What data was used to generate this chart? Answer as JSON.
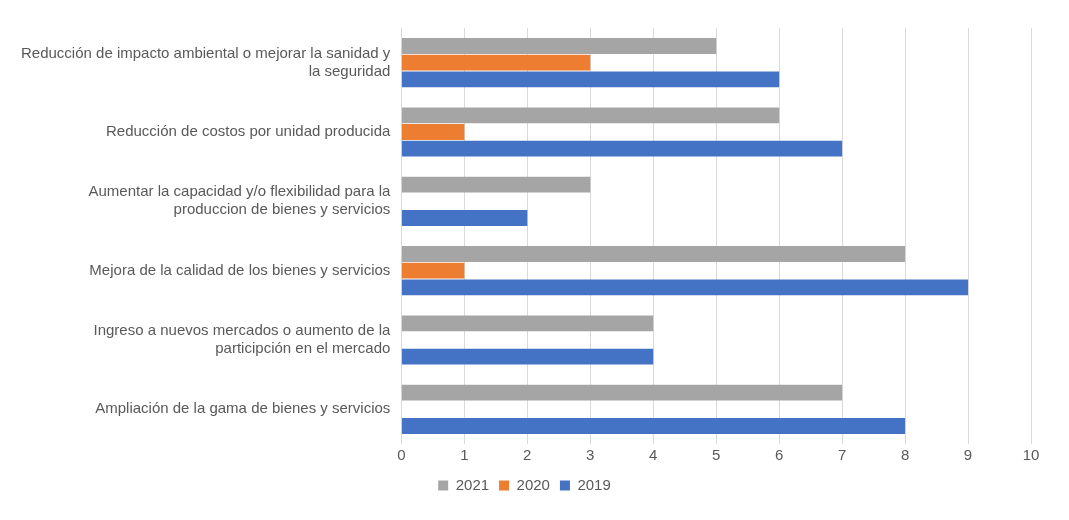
{
  "chart_data": {
    "type": "bar",
    "orientation": "horizontal",
    "categories": [
      "Reducción de impacto ambiental o mejorar la sanidad y la seguridad",
      "Reducción de costos por unidad producida",
      "Aumentar la capacidad y/o flexibilidad para la produccion de bienes y servicios",
      "Mejora de la calidad de los bienes y servicios",
      "Ingreso a nuevos mercados o aumento de la participción en el mercado",
      "Ampliación de la gama de bienes y servicios"
    ],
    "series": [
      {
        "name": "2021",
        "color": "#a5a5a5",
        "values": [
          5,
          6,
          3,
          8,
          4,
          7
        ]
      },
      {
        "name": "2020",
        "color": "#ed7d31",
        "values": [
          3,
          1,
          null,
          1,
          null,
          null
        ]
      },
      {
        "name": "2019",
        "color": "#4472c4",
        "values": [
          6,
          7,
          2,
          9,
          4,
          8
        ]
      }
    ],
    "xlim": [
      0,
      10
    ],
    "xticks": [
      0,
      1,
      2,
      3,
      4,
      5,
      6,
      7,
      8,
      9,
      10
    ],
    "grid": "x",
    "legend": "bottom"
  }
}
